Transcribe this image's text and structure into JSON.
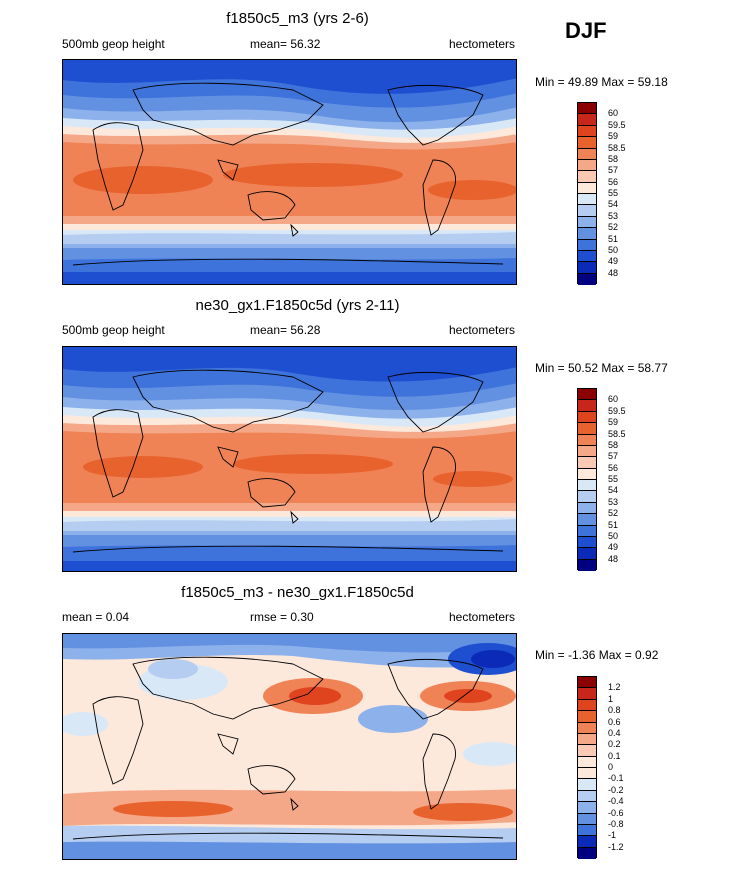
{
  "season": "DJF",
  "panels": [
    {
      "title": "f1850c5_m3 (yrs 2-6)",
      "left_label": "500mb geop height",
      "center_label": "mean=  56.32",
      "right_label": "hectometers",
      "minmax": "Min =  49.89 Max =  59.18",
      "ticks": [
        "60",
        "59.5",
        "59",
        "58.5",
        "58",
        "57",
        "56",
        "55",
        "54",
        "53",
        "52",
        "51",
        "50",
        "49",
        "48"
      ],
      "colors": [
        "#8b0000",
        "#c8261a",
        "#e0441f",
        "#e8622e",
        "#ef8356",
        "#f5a887",
        "#fac9b3",
        "#fde8dc",
        "#d9e8f7",
        "#b4cdf0",
        "#8db1ea",
        "#6391e2",
        "#3f73dc",
        "#1f4fd1",
        "#0b2ab7",
        "#000080"
      ]
    },
    {
      "title": "ne30_gx1.F1850c5d (yrs 2-11)",
      "left_label": "500mb geop height",
      "center_label": "mean=  56.28",
      "right_label": "hectometers",
      "minmax": "Min =  50.52 Max =  58.77",
      "ticks": [
        "60",
        "59.5",
        "59",
        "58.5",
        "58",
        "57",
        "56",
        "55",
        "54",
        "53",
        "52",
        "51",
        "50",
        "49",
        "48"
      ],
      "colors": [
        "#8b0000",
        "#c8261a",
        "#e0441f",
        "#e8622e",
        "#ef8356",
        "#f5a887",
        "#fac9b3",
        "#fde8dc",
        "#d9e8f7",
        "#b4cdf0",
        "#8db1ea",
        "#6391e2",
        "#3f73dc",
        "#1f4fd1",
        "#0b2ab7",
        "#000080"
      ]
    },
    {
      "title": "f1850c5_m3 - ne30_gx1.F1850c5d",
      "left_label": "mean =   0.04",
      "center_label": "rmse =   0.30",
      "right_label": "hectometers",
      "minmax": "Min =  -1.36 Max =   0.92",
      "ticks": [
        "1.2",
        "1",
        "0.8",
        "0.6",
        "0.4",
        "0.2",
        "0.1",
        "0",
        "-0.1",
        "-0.2",
        "-0.4",
        "-0.6",
        "-0.8",
        "-1",
        "-1.2"
      ],
      "colors": [
        "#8b0000",
        "#c8261a",
        "#e0441f",
        "#e8622e",
        "#ef8356",
        "#f5a887",
        "#fac9b3",
        "#fde8dc",
        "#fde8dc",
        "#d9e8f7",
        "#b4cdf0",
        "#8db1ea",
        "#6391e2",
        "#3f73dc",
        "#0b2ab7",
        "#000080"
      ]
    }
  ]
}
